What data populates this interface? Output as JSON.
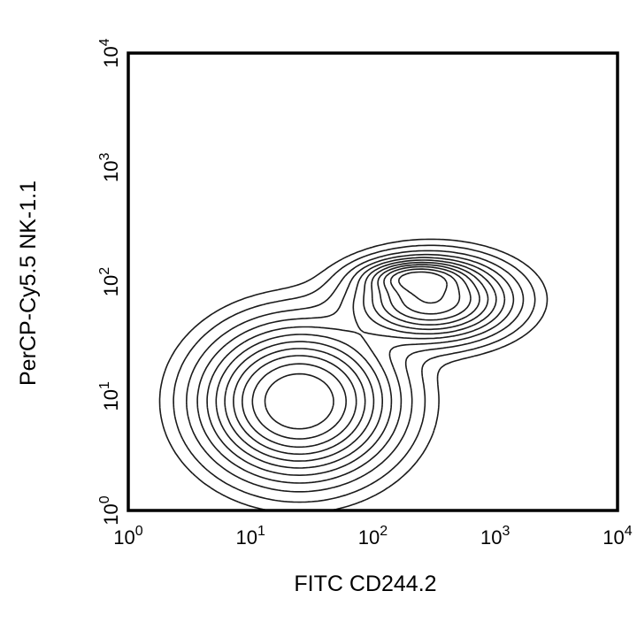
{
  "chart_data": {
    "type": "contour",
    "xlabel": "FITC CD244.2",
    "ylabel": "PerCP-Cy5.5 NK-1.1",
    "xscale": "log",
    "yscale": "log",
    "xlim": [
      1,
      10000
    ],
    "ylim": [
      1,
      10000
    ],
    "x_ticks": [
      {
        "base": "10",
        "exp": "0"
      },
      {
        "base": "10",
        "exp": "1"
      },
      {
        "base": "10",
        "exp": "2"
      },
      {
        "base": "10",
        "exp": "3"
      },
      {
        "base": "10",
        "exp": "4"
      }
    ],
    "y_ticks": [
      {
        "base": "10",
        "exp": "0"
      },
      {
        "base": "10",
        "exp": "1"
      },
      {
        "base": "10",
        "exp": "2"
      },
      {
        "base": "10",
        "exp": "3"
      },
      {
        "base": "10",
        "exp": "4"
      }
    ],
    "grid": false,
    "populations": [
      {
        "name": "",
        "center_x": 25,
        "center_y": 9,
        "sx_decades": 0.42,
        "sy_decades": 0.36,
        "weight": 1.0
      },
      {
        "name": "",
        "center_x": 300,
        "center_y": 70,
        "sx_decades": 0.36,
        "sy_decades": 0.2,
        "weight": 0.8
      },
      {
        "name": "",
        "center_x": 230,
        "center_y": 110,
        "sx_decades": 0.22,
        "sy_decades": 0.08,
        "weight": 0.5
      }
    ],
    "contour_levels": [
      0.025,
      0.05,
      0.09,
      0.14,
      0.2,
      0.27,
      0.35,
      0.44,
      0.54,
      0.66,
      0.8
    ]
  }
}
